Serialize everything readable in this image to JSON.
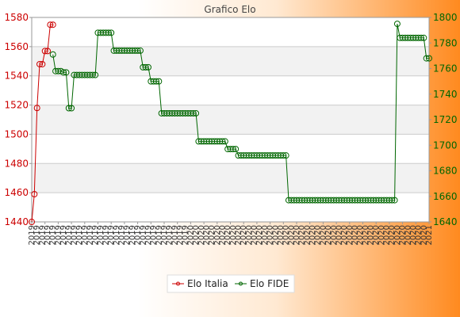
{
  "chart_data": {
    "type": "line",
    "title": "Grafico Elo",
    "colors": {
      "italia": "#cc0000",
      "fide": "#006600",
      "grid": "#cccccc",
      "band": "#f2f2f2"
    },
    "y_left": {
      "min": 1440,
      "max": 1580,
      "ticks": [
        1440,
        1460,
        1480,
        1500,
        1520,
        1540,
        1560,
        1580
      ]
    },
    "y_right": {
      "min": 1640,
      "max": 1800,
      "ticks": [
        1640,
        1660,
        1680,
        1700,
        1720,
        1740,
        1760,
        1780,
        1800
      ]
    },
    "x_count": 150,
    "x_labels": [
      "2019",
      "2019",
      "2020",
      "2020",
      "2020",
      "2021"
    ],
    "series": [
      {
        "name": "Elo Italia",
        "axis": "left",
        "points": [
          [
            0,
            1440
          ],
          [
            1,
            1459
          ],
          [
            2,
            1518
          ],
          [
            3,
            1548
          ],
          [
            4,
            1548
          ],
          [
            5,
            1557
          ],
          [
            6,
            1557
          ],
          [
            7,
            1575
          ],
          [
            8,
            1575
          ]
        ]
      },
      {
        "name": "Elo FIDE",
        "axis": "right",
        "segments": [
          [
            8,
            1771
          ],
          [
            9,
            1758
          ],
          [
            10,
            1758
          ],
          [
            11,
            1758
          ],
          [
            12,
            1757
          ],
          [
            13,
            1757
          ],
          [
            14,
            1729
          ],
          [
            15,
            1729
          ],
          [
            16,
            1755
          ],
          [
            24,
            1755
          ],
          [
            25,
            1788
          ],
          [
            30,
            1788
          ],
          [
            31,
            1774
          ],
          [
            41,
            1774
          ],
          [
            42,
            1761
          ],
          [
            44,
            1761
          ],
          [
            45,
            1750
          ],
          [
            48,
            1750
          ],
          [
            49,
            1725
          ],
          [
            62,
            1725
          ],
          [
            63,
            1703
          ],
          [
            73,
            1703
          ],
          [
            74,
            1697
          ],
          [
            77,
            1697
          ],
          [
            78,
            1692
          ],
          [
            96,
            1692
          ],
          [
            97,
            1657
          ],
          [
            137,
            1657
          ],
          [
            138,
            1795
          ],
          [
            139,
            1784
          ],
          [
            148,
            1784
          ],
          [
            149,
            1768
          ],
          [
            150,
            1768
          ]
        ]
      }
    ],
    "legend_position": "bottom-center"
  }
}
